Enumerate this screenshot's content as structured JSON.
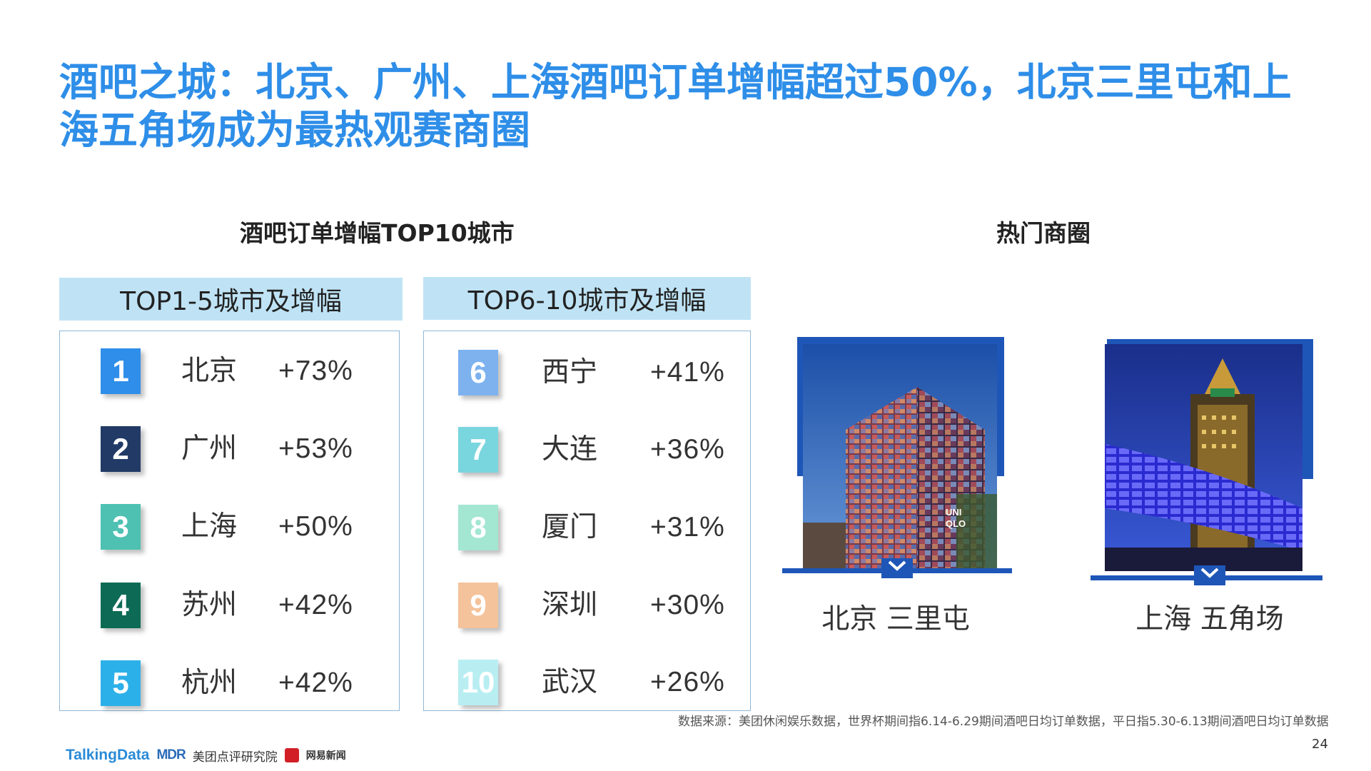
{
  "title": "酒吧之城：北京、广州、上海酒吧订单增幅超过50%，北京三里屯和上海五角场成为最热观赛商圈",
  "left_section_title": "酒吧订单增幅TOP10城市",
  "right_section_title": "热门商圈",
  "groups": [
    {
      "header": "TOP1-5城市及增幅",
      "rows": [
        {
          "rank": "1",
          "city": "北京",
          "pct": "+73%",
          "color": "#2f8ee9"
        },
        {
          "rank": "2",
          "city": "广州",
          "pct": "+53%",
          "color": "#223a66"
        },
        {
          "rank": "3",
          "city": "上海",
          "pct": "+50%",
          "color": "#4ec1b2"
        },
        {
          "rank": "4",
          "city": "苏州",
          "pct": "+42%",
          "color": "#0d6b55"
        },
        {
          "rank": "5",
          "city": "杭州",
          "pct": "+42%",
          "color": "#2cb0ea"
        }
      ]
    },
    {
      "header": "TOP6-10城市及增幅",
      "rows": [
        {
          "rank": "6",
          "city": "西宁",
          "pct": "+41%",
          "color": "#7db2ef"
        },
        {
          "rank": "7",
          "city": "大连",
          "pct": "+36%",
          "color": "#79d5de"
        },
        {
          "rank": "8",
          "city": "厦门",
          "pct": "+31%",
          "color": "#a3e6d2"
        },
        {
          "rank": "9",
          "city": "深圳",
          "pct": "+30%",
          "color": "#f4c39b"
        },
        {
          "rank": "10",
          "city": "武汉",
          "pct": "+26%",
          "color": "#b8eef2"
        }
      ]
    }
  ],
  "districts": [
    {
      "label": "北京 三里屯",
      "icon": "chevron-down-icon"
    },
    {
      "label": "上海 五角场",
      "icon": "chevron-down-icon"
    }
  ],
  "source": "数据来源：美团休闲娱乐数据，世界杯期间指6.14-6.29期间酒吧日均订单数据，平日指5.30-6.13期间酒吧日均订单数据",
  "page_number": "24",
  "logos": {
    "talkingdata": "TalkingData",
    "mdr": "MDR",
    "meituan": "美团点评研究院",
    "netease_mark": "网易",
    "netease": "网易新闻"
  },
  "colors": {
    "title": "#2e8ee8",
    "header_bg": "#bfe3f5",
    "frame_blue": "#1e56b8"
  }
}
